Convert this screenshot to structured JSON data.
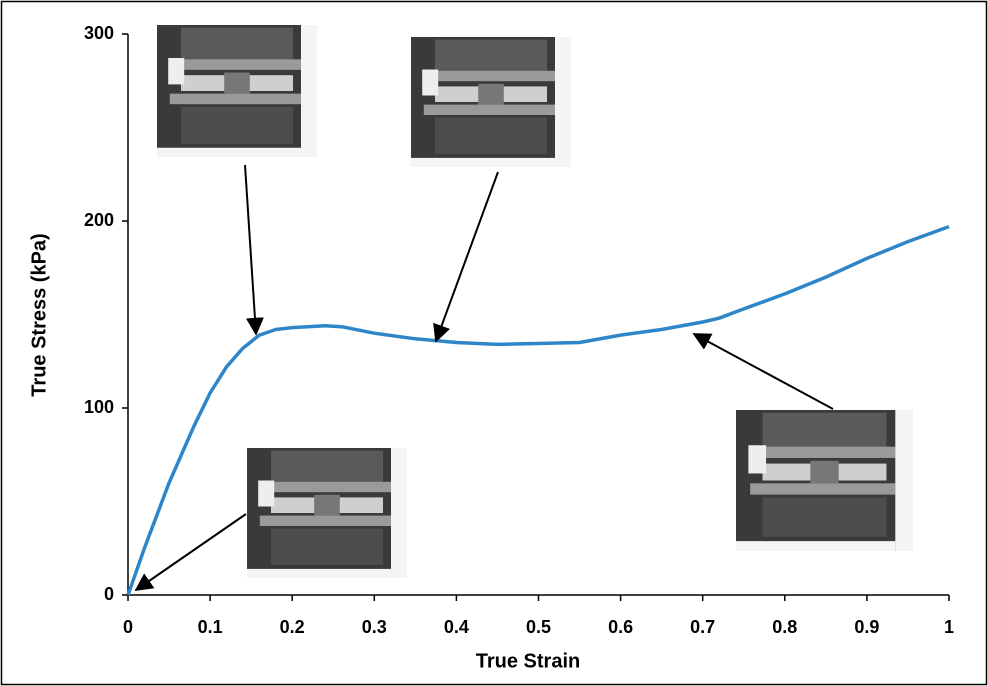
{
  "chart_data": {
    "type": "line",
    "x_label": "True Strain",
    "y_label": "True Stress (kPa)",
    "x": [
      0,
      0.02,
      0.05,
      0.08,
      0.1,
      0.12,
      0.14,
      0.16,
      0.18,
      0.2,
      0.24,
      0.26,
      0.3,
      0.35,
      0.4,
      0.45,
      0.5,
      0.55,
      0.6,
      0.65,
      0.7,
      0.72,
      0.75,
      0.8,
      0.85,
      0.9,
      0.95,
      1
    ],
    "values": [
      0,
      25,
      60,
      90,
      108,
      122,
      132,
      139,
      142,
      143,
      144,
      143.5,
      140,
      137,
      135,
      134,
      134.5,
      135,
      139,
      142,
      146,
      148,
      153,
      161,
      170,
      180,
      189,
      197
    ],
    "color": "#2e86c9",
    "xlim": [
      0,
      1
    ],
    "xticks": [
      0,
      0.1,
      0.2,
      0.3,
      0.4,
      0.5,
      0.6,
      0.7,
      0.8,
      0.9,
      1
    ],
    "ylim": [
      0,
      300
    ],
    "yticks": [
      0,
      100,
      200,
      300
    ],
    "grid": false
  }
}
